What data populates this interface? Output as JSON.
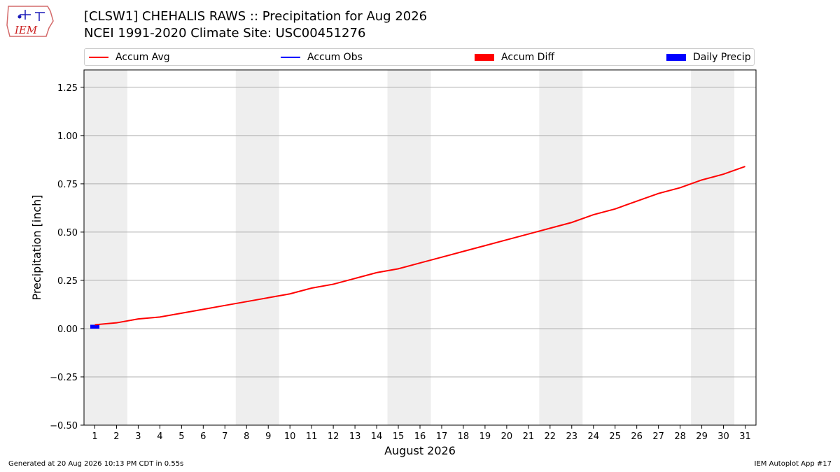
{
  "header": {
    "logo_text": "IEM",
    "title_line1": "[CLSW1] CHEHALIS RAWS :: Precipitation for Aug 2026",
    "title_line2": "NCEI 1991-2020 Climate Site: USC00451276"
  },
  "legend": {
    "items": [
      {
        "label": "Accum Avg",
        "kind": "line",
        "color": "#ff0000"
      },
      {
        "label": "Accum Obs",
        "kind": "line",
        "color": "#0000ff"
      },
      {
        "label": "Accum Diff",
        "kind": "patch",
        "color": "#ff0000"
      },
      {
        "label": "Daily Precip",
        "kind": "patch",
        "color": "#0000ff"
      }
    ]
  },
  "footer": {
    "left": "Generated at 20 Aug 2026 10:13 PM CDT in 0.55s",
    "right": "IEM Autoplot App #17"
  },
  "chart_data": {
    "type": "line",
    "xlabel": "August 2026",
    "ylabel": "Precipitation [inch]",
    "x": [
      1,
      2,
      3,
      4,
      5,
      6,
      7,
      8,
      9,
      10,
      11,
      12,
      13,
      14,
      15,
      16,
      17,
      18,
      19,
      20,
      21,
      22,
      23,
      24,
      25,
      26,
      27,
      28,
      29,
      30,
      31
    ],
    "xlim": [
      0.5,
      31.5
    ],
    "ylim": [
      -0.5,
      1.34
    ],
    "yticks": [
      -0.5,
      -0.25,
      0.0,
      0.25,
      0.5,
      0.75,
      1.0,
      1.25
    ],
    "ytick_labels": [
      "−0.50",
      "−0.25",
      "0.00",
      "0.25",
      "0.50",
      "0.75",
      "1.00",
      "1.25"
    ],
    "grid": "horizontal",
    "weekend_bands": [
      [
        0.5,
        2.5
      ],
      [
        7.5,
        9.5
      ],
      [
        14.5,
        16.5
      ],
      [
        21.5,
        23.5
      ],
      [
        28.5,
        30.5
      ]
    ],
    "band_color": "#eeeeee",
    "series": [
      {
        "name": "Accum Avg",
        "kind": "line",
        "color": "#ff0000",
        "values": [
          0.02,
          0.03,
          0.05,
          0.06,
          0.08,
          0.1,
          0.12,
          0.14,
          0.16,
          0.18,
          0.21,
          0.23,
          0.26,
          0.29,
          0.31,
          0.34,
          0.37,
          0.4,
          0.43,
          0.46,
          0.49,
          0.52,
          0.55,
          0.59,
          0.62,
          0.66,
          0.7,
          0.73,
          0.77,
          0.8,
          0.84
        ]
      },
      {
        "name": "Daily Precip",
        "kind": "bar",
        "color": "#0000ff",
        "x": [
          1
        ],
        "values": [
          0.02
        ]
      }
    ]
  }
}
